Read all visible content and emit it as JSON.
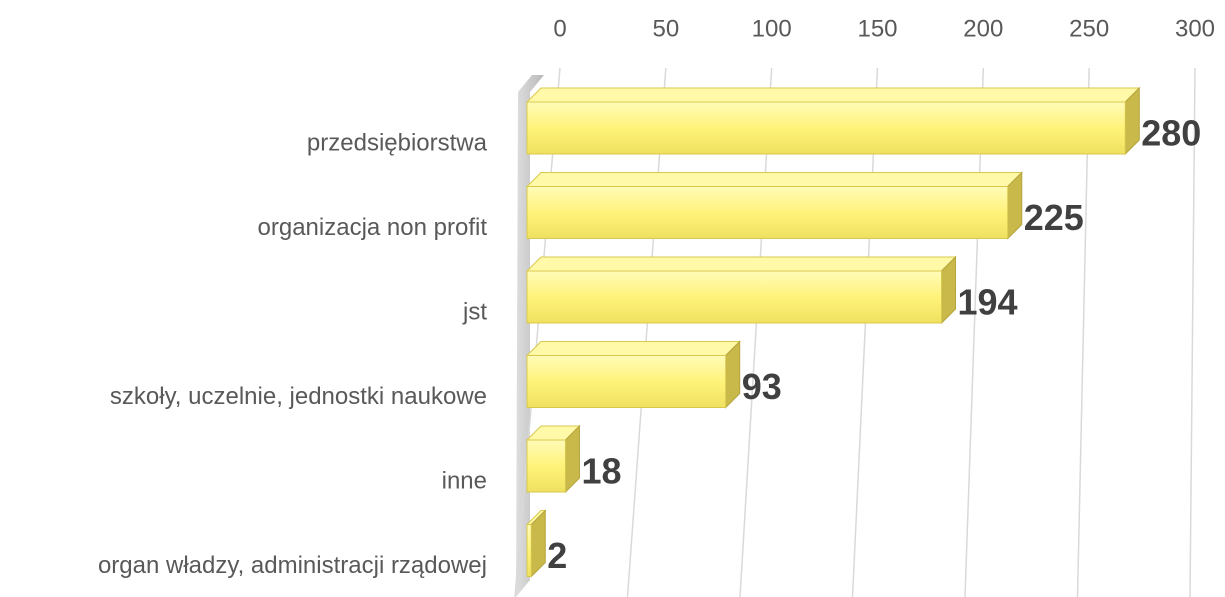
{
  "chart_data": {
    "type": "bar",
    "orientation": "horizontal",
    "categories": [
      "przedsiębiorstwa",
      "organizacja non profit",
      "jst",
      "szkoły, uczelnie, jednostki naukowe",
      "inne",
      "organ władzy, administracji rządowej"
    ],
    "values": [
      280,
      225,
      194,
      93,
      18,
      2
    ],
    "color": "#fff37a",
    "xlim": [
      0,
      300
    ],
    "xticks": [
      0,
      50,
      100,
      150,
      200,
      250,
      300
    ],
    "grid": true
  }
}
